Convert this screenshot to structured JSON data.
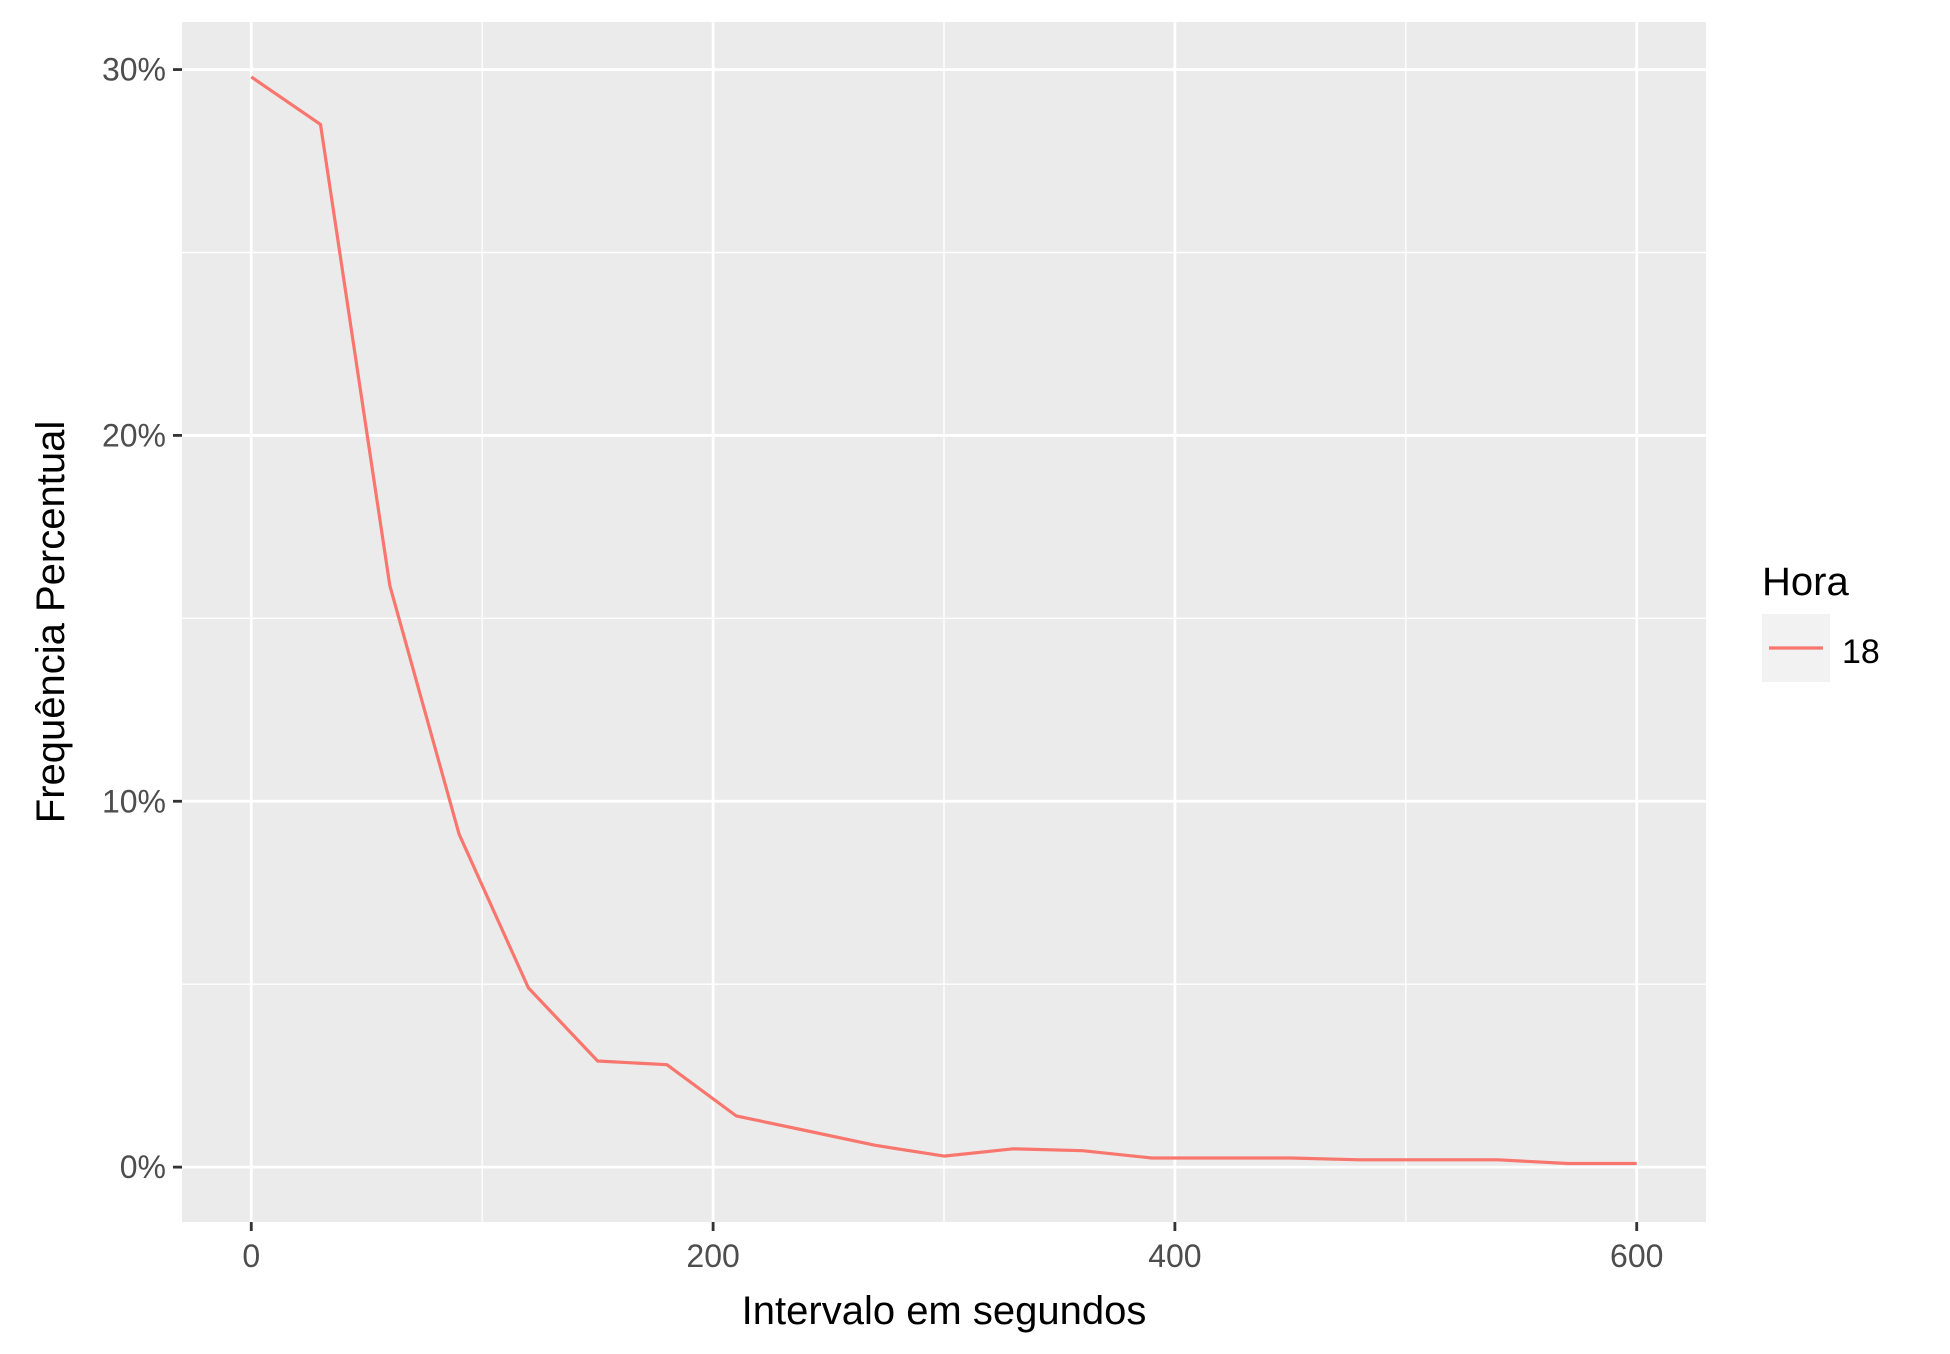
{
  "chart_data": {
    "type": "line",
    "title": "",
    "xlabel": "Intervalo em segundos",
    "ylabel": "Frequência Percentual",
    "xlim": [
      -30,
      630
    ],
    "ylim": [
      -1.5,
      31.3
    ],
    "x_ticks": [
      0,
      200,
      400,
      600
    ],
    "x_minor_ticks": [
      100,
      300,
      500
    ],
    "y_ticks": [
      0,
      10,
      20,
      30
    ],
    "y_tick_labels": [
      "0%",
      "10%",
      "20%",
      "30%"
    ],
    "y_minor_ticks": [
      5,
      15,
      25
    ],
    "grid": true,
    "legend": {
      "title": "Hora",
      "position": "right",
      "entries": [
        "18"
      ]
    },
    "series": [
      {
        "name": "18",
        "color": "#F8766D",
        "x": [
          0,
          30,
          60,
          90,
          120,
          150,
          180,
          210,
          240,
          270,
          300,
          330,
          360,
          390,
          420,
          450,
          480,
          510,
          540,
          570,
          600
        ],
        "y": [
          29.8,
          28.5,
          15.9,
          9.1,
          4.9,
          2.9,
          2.8,
          1.4,
          1.0,
          0.6,
          0.3,
          0.5,
          0.45,
          0.25,
          0.25,
          0.25,
          0.2,
          0.2,
          0.2,
          0.1,
          0.1
        ]
      }
    ]
  },
  "colors": {
    "panel_background": "#EBEBEB",
    "grid_line": "#FFFFFF",
    "axis_text": "#4D4D4D",
    "title_text": "#000000",
    "legend_key_background": "#F2F2F2"
  }
}
